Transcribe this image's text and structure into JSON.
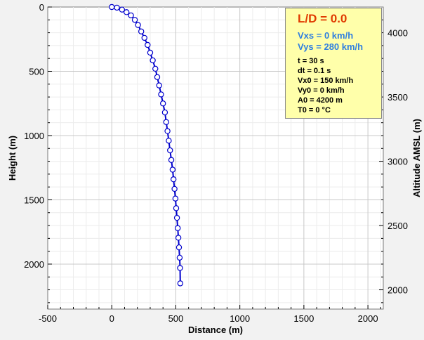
{
  "chart_data": {
    "type": "line",
    "xlabel": "Distance (m)",
    "ylabel": "Height (m)",
    "y2label": "Altitude AMSL (m)",
    "xlim": [
      -500,
      2120
    ],
    "ylim": [
      0,
      2350
    ],
    "y_inverted": true,
    "y2lim": [
      4200,
      1850
    ],
    "x_ticks": [
      -500,
      0,
      500,
      1000,
      1500,
      2000
    ],
    "x_tick_labels": [
      "-500",
      "0",
      "500",
      "1000",
      "1500",
      "2000"
    ],
    "y_ticks": [
      0,
      500,
      1000,
      1500,
      2000
    ],
    "y_tick_labels": [
      "0",
      "500",
      "1000",
      "1500",
      "2000"
    ],
    "y2_ticks": [
      4000,
      3500,
      3000,
      2500,
      2000
    ],
    "y2_tick_labels": [
      "4000",
      "3500",
      "3000",
      "2500",
      "2000"
    ],
    "grid": true,
    "series": [
      {
        "color": "#0000cc",
        "marker": "circle",
        "x": [
          0,
          40,
          80,
          115,
          150,
          180,
          205,
          230,
          255,
          280,
          300,
          320,
          340,
          355,
          370,
          385,
          400,
          415,
          425,
          435,
          445,
          455,
          465,
          475,
          482,
          490,
          497,
          503,
          509,
          515,
          520,
          525,
          530,
          533,
          535
        ],
        "y": [
          0,
          5,
          20,
          40,
          65,
          100,
          140,
          190,
          240,
          295,
          355,
          415,
          480,
          545,
          610,
          680,
          750,
          820,
          895,
          965,
          1040,
          1115,
          1190,
          1265,
          1340,
          1415,
          1490,
          1565,
          1640,
          1720,
          1795,
          1870,
          1950,
          2030,
          2150
        ]
      }
    ]
  },
  "info": {
    "title": "L/D = 0.0",
    "vxs": "Vxs = 0 km/h",
    "vys": "Vys = 280 km/h",
    "params": [
      "t = 30 s",
      "dt = 0.1 s",
      "Vx0 = 150 km/h",
      "Vy0 = 0 km/h",
      "A0 = 4200 m",
      "T0 = 0 °C"
    ],
    "title_color": "#e03a00",
    "velocity_color": "#2f7fe0",
    "box_color": "#ffffaa"
  }
}
